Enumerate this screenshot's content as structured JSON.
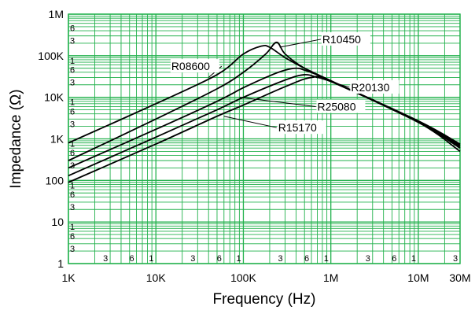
{
  "chart_data": {
    "type": "line",
    "title": "",
    "xlabel": "Frequency (Hz)",
    "ylabel": "Impedance (Ω)",
    "x_scale": "log",
    "y_scale": "log",
    "xlim": [
      1000,
      30000000
    ],
    "ylim": [
      1,
      1000000
    ],
    "grid": true,
    "grid_color": "#22b14c",
    "line_color": "#000000",
    "x_ticks": [
      {
        "value": 1000,
        "label": "1K"
      },
      {
        "value": 10000,
        "label": "10K"
      },
      {
        "value": 100000,
        "label": "100K"
      },
      {
        "value": 1000000,
        "label": "1M"
      },
      {
        "value": 10000000,
        "label": "10M"
      },
      {
        "value": 30000000,
        "label": "30M"
      }
    ],
    "y_ticks": [
      {
        "value": 1,
        "label": "1"
      },
      {
        "value": 10,
        "label": "10"
      },
      {
        "value": 100,
        "label": "100"
      },
      {
        "value": 1000,
        "label": "1K"
      },
      {
        "value": 10000,
        "label": "10K"
      },
      {
        "value": 100000,
        "label": "100K"
      },
      {
        "value": 1000000,
        "label": "1M"
      }
    ],
    "x_minor_labels": [
      {
        "value": 3000,
        "label": "3"
      },
      {
        "value": 6000,
        "label": "6"
      },
      {
        "value": 10000,
        "label": "1"
      },
      {
        "value": 30000,
        "label": "3"
      },
      {
        "value": 60000,
        "label": "6"
      },
      {
        "value": 100000,
        "label": "1"
      },
      {
        "value": 300000,
        "label": "3"
      },
      {
        "value": 600000,
        "label": "6"
      },
      {
        "value": 1000000,
        "label": "1"
      },
      {
        "value": 3000000,
        "label": "3"
      },
      {
        "value": 6000000,
        "label": "6"
      },
      {
        "value": 10000000,
        "label": "1"
      },
      {
        "value": 30000000,
        "label": "3"
      }
    ],
    "y_minor_labels": [
      {
        "value": 3,
        "label": "3"
      },
      {
        "value": 6,
        "label": "6"
      },
      {
        "value": 10,
        "label": "1"
      },
      {
        "value": 30,
        "label": "3"
      },
      {
        "value": 60,
        "label": "6"
      },
      {
        "value": 100,
        "label": "1"
      },
      {
        "value": 300,
        "label": "3"
      },
      {
        "value": 600,
        "label": "6"
      },
      {
        "value": 1000,
        "label": "1"
      },
      {
        "value": 3000,
        "label": "3"
      },
      {
        "value": 6000,
        "label": "6"
      },
      {
        "value": 10000,
        "label": "1"
      },
      {
        "value": 30000,
        "label": "3"
      },
      {
        "value": 60000,
        "label": "6"
      },
      {
        "value": 100000,
        "label": "1"
      },
      {
        "value": 300000,
        "label": "3"
      },
      {
        "value": 600000,
        "label": "6"
      }
    ],
    "series": [
      {
        "name": "R08600",
        "label_at": {
          "x": 15000,
          "y": 45000
        },
        "leader_to": {
          "x": 40000,
          "y": 30000
        },
        "points": [
          {
            "x": 1000,
            "y": 800
          },
          {
            "x": 10000,
            "y": 7000
          },
          {
            "x": 50000,
            "y": 35000
          },
          {
            "x": 100000,
            "y": 110000
          },
          {
            "x": 160000,
            "y": 170000
          },
          {
            "x": 200000,
            "y": 160000
          },
          {
            "x": 300000,
            "y": 90000
          },
          {
            "x": 500000,
            "y": 50000
          },
          {
            "x": 1000000,
            "y": 25000
          },
          {
            "x": 10000000,
            "y": 2500
          },
          {
            "x": 30000000,
            "y": 500
          }
        ]
      },
      {
        "name": "R10450",
        "label_at": {
          "x": 800000,
          "y": 200000
        },
        "leader_to": {
          "x": 260000,
          "y": 160000
        },
        "points": [
          {
            "x": 1000,
            "y": 300
          },
          {
            "x": 10000,
            "y": 3000
          },
          {
            "x": 50000,
            "y": 16000
          },
          {
            "x": 100000,
            "y": 40000
          },
          {
            "x": 180000,
            "y": 110000
          },
          {
            "x": 240000,
            "y": 210000
          },
          {
            "x": 300000,
            "y": 110000
          },
          {
            "x": 500000,
            "y": 50000
          },
          {
            "x": 1000000,
            "y": 25000
          },
          {
            "x": 10000000,
            "y": 2500
          },
          {
            "x": 30000000,
            "y": 600
          }
        ]
      },
      {
        "name": "R20130",
        "label_at": {
          "x": 1700000,
          "y": 14000
        },
        "leader_to": {
          "x": 550000,
          "y": 35000
        },
        "points": [
          {
            "x": 1000,
            "y": 200
          },
          {
            "x": 10000,
            "y": 1700
          },
          {
            "x": 50000,
            "y": 8000
          },
          {
            "x": 100000,
            "y": 17000
          },
          {
            "x": 200000,
            "y": 33000
          },
          {
            "x": 300000,
            "y": 45000
          },
          {
            "x": 400000,
            "y": 50000
          },
          {
            "x": 500000,
            "y": 45000
          },
          {
            "x": 1000000,
            "y": 25000
          },
          {
            "x": 10000000,
            "y": 2600
          },
          {
            "x": 30000000,
            "y": 650
          }
        ]
      },
      {
        "name": "R25080",
        "label_at": {
          "x": 700000,
          "y": 4800
        },
        "leader_to": {
          "x": 90000,
          "y": 10000
        },
        "points": [
          {
            "x": 1000,
            "y": 130
          },
          {
            "x": 10000,
            "y": 1100
          },
          {
            "x": 50000,
            "y": 5000
          },
          {
            "x": 100000,
            "y": 10000
          },
          {
            "x": 300000,
            "y": 26000
          },
          {
            "x": 500000,
            "y": 35000
          },
          {
            "x": 700000,
            "y": 30000
          },
          {
            "x": 1000000,
            "y": 24000
          },
          {
            "x": 10000000,
            "y": 2600
          },
          {
            "x": 30000000,
            "y": 700
          }
        ]
      },
      {
        "name": "R15170",
        "label_at": {
          "x": 250000,
          "y": 1500
        },
        "leader_to": {
          "x": 60000,
          "y": 3500
        },
        "points": [
          {
            "x": 1000,
            "y": 90
          },
          {
            "x": 10000,
            "y": 750
          },
          {
            "x": 50000,
            "y": 3500
          },
          {
            "x": 100000,
            "y": 6500
          },
          {
            "x": 300000,
            "y": 18000
          },
          {
            "x": 600000,
            "y": 30000
          },
          {
            "x": 1000000,
            "y": 24000
          },
          {
            "x": 10000000,
            "y": 2700
          },
          {
            "x": 30000000,
            "y": 750
          }
        ]
      }
    ]
  }
}
